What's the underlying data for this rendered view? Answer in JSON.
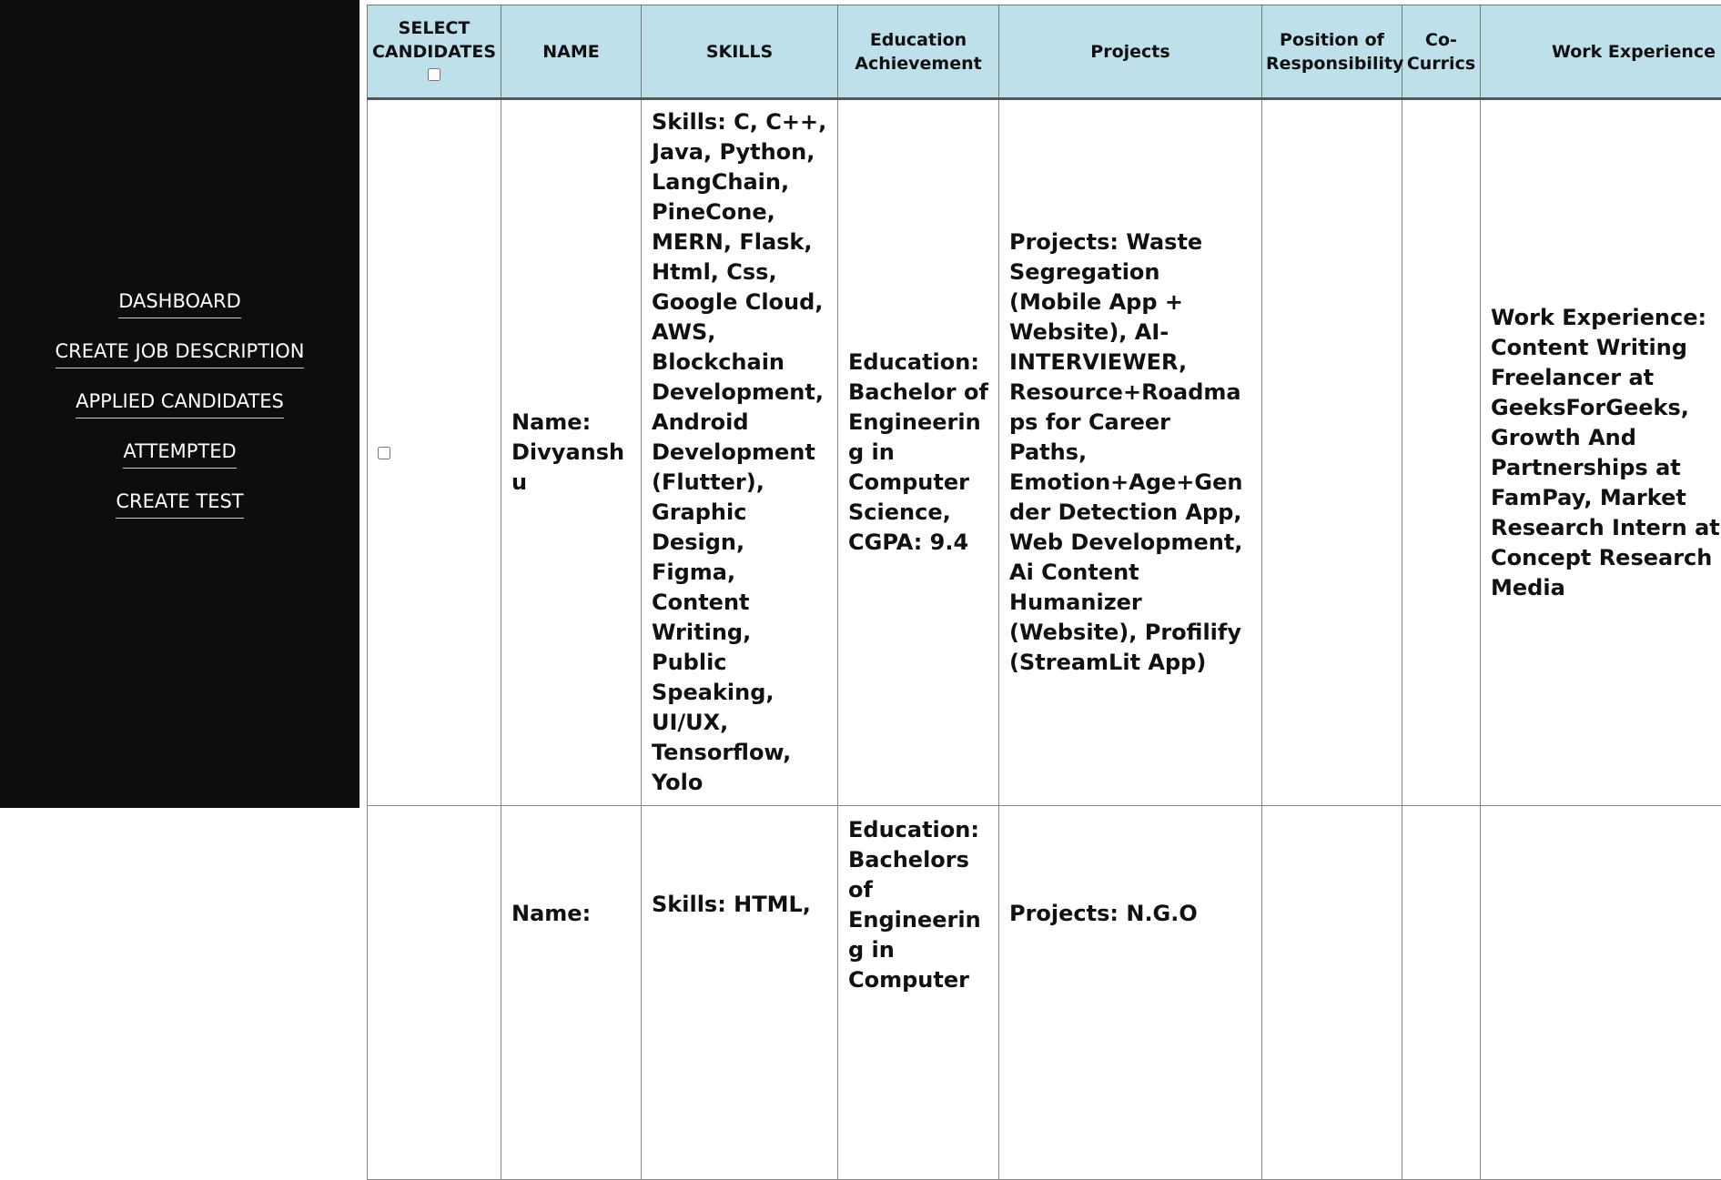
{
  "sidebar": {
    "links": [
      "DASHBOARD",
      "CREATE JOB DESCRIPTION",
      "APPLIED CANDIDATES",
      "ATTEMPTED",
      "CREATE TEST"
    ]
  },
  "table": {
    "headers": [
      "SELECT CANDIDATES",
      "NAME",
      "SKILLS",
      "Education Achievement",
      "Projects",
      "Position of Responsibility",
      "Co-Currics",
      "Work Experience"
    ],
    "rows": [
      {
        "name": "Name: Divyanshu",
        "skills": "Skills: C, C++, Java, Python, LangChain, PineCone, MERN, Flask, Html, Css, Google Cloud, AWS, Blockchain Development, Android Development (Flutter), Graphic Design, Figma, Content Writing, Public Speaking, UI/UX, Tensorflow, Yolo",
        "education": "Education: Bachelor of Engineering in Computer Science, CGPA: 9.4",
        "projects": "Projects: Waste Segregation (Mobile App + Website), AI-INTERVIEWER, Resource+Roadmaps for Career Paths, Emotion+Age+Gender Detection App, Web Development, Ai Content Humanizer (Website), Profilify (StreamLit App)",
        "work_experience": "Work Experience: Content Writing Freelancer at GeeksForGeeks, Growth And Partnerships at FamPay, Market Research Intern at Concept Research Media"
      },
      {
        "name": "Name:",
        "skills": "Skills: HTML,",
        "education": "Education: Bachelors of Engineering in Computer",
        "projects": "Projects: N.G.O"
      }
    ]
  }
}
